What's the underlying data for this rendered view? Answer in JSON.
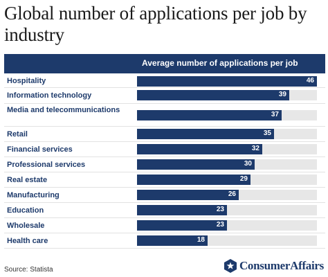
{
  "title": "Global number of applications per job by industry",
  "column_header": "Average number of applications per job",
  "source": "Source: Statista",
  "brand": {
    "logo_text": "ConsumerAffairs",
    "color": "#1d3a6b"
  },
  "colors": {
    "bar": "#1d3a6b",
    "track": "#e7e7e7",
    "label": "#1d3a6b"
  },
  "chart_data": {
    "type": "bar",
    "orientation": "horizontal",
    "title": "Global number of applications per job by industry",
    "xlabel": "",
    "ylabel": "",
    "series_label": "Average number of applications per job",
    "categories": [
      "Hospitality",
      "Information technology",
      "Media and telecommunications",
      "Retail",
      "Financial services",
      "Professional services",
      "Real estate",
      "Manufacturing",
      "Education",
      "Wholesale",
      "Health care"
    ],
    "values": [
      46,
      39,
      37,
      35,
      32,
      30,
      29,
      26,
      23,
      23,
      18
    ],
    "xlim": [
      0,
      46
    ],
    "grid": false,
    "legend": "none"
  }
}
